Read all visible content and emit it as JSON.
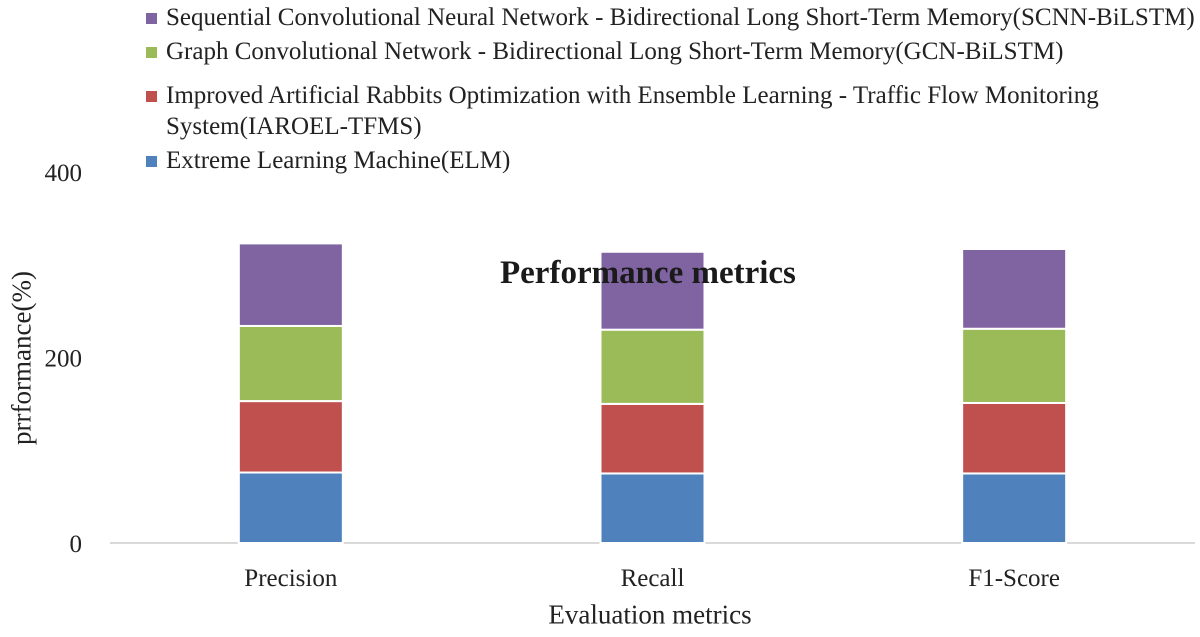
{
  "chart_data": {
    "type": "bar",
    "stacked": true,
    "title": "Performance metrics",
    "xlabel": "Evaluation metrics",
    "ylabel": "prrformance(%)",
    "ylim": [
      0,
      400
    ],
    "yticks": [
      0,
      200,
      400
    ],
    "grid": false,
    "legend_position": "top",
    "categories": [
      "Precision",
      "Recall",
      "F1-Score"
    ],
    "series": [
      {
        "name": "Extreme Learning Machine(ELM)",
        "color": "#4f81bd",
        "values": [
          76,
          75,
          75
        ]
      },
      {
        "name": "Improved Artificial Rabbits Optimization with Ensemble Learning - Traffic Flow Monitoring System(IAROEL-TFMS)",
        "color": "#c0504d",
        "values": [
          77,
          75,
          76
        ]
      },
      {
        "name": "Graph Convolutional Network - Bidirectional Long Short-Term Memory(GCN-BiLSTM)",
        "color": "#9bbb59",
        "values": [
          81,
          80,
          80
        ]
      },
      {
        "name": "Sequential Convolutional Neural Network - Bidirectional Long Short-Term Memory(SCNN-BiLSTM)",
        "color": "#8064a2",
        "values": [
          89,
          84,
          86
        ]
      }
    ]
  }
}
